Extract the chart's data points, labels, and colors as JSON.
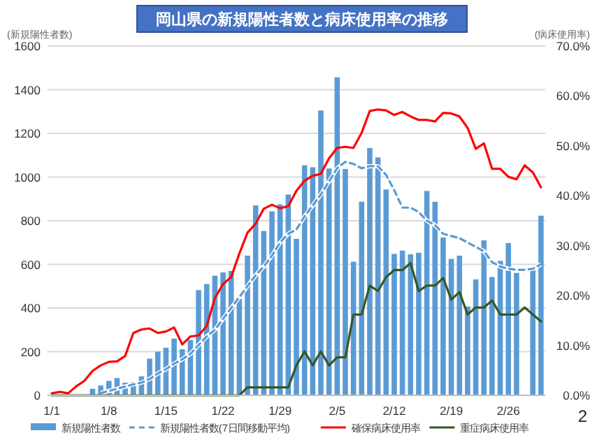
{
  "chart_data": {
    "type": "bar",
    "title": "岡山県の新規陽性者数と病床使用率の推移",
    "ylabel": "(新規陽性者数)",
    "y2label": "(病床使用率)",
    "categories": [
      "1/1",
      null,
      null,
      null,
      null,
      null,
      null,
      "1/8",
      null,
      null,
      null,
      null,
      null,
      null,
      "1/15",
      null,
      null,
      null,
      null,
      null,
      null,
      "1/22",
      null,
      null,
      null,
      null,
      null,
      null,
      "1/29",
      null,
      null,
      null,
      null,
      null,
      null,
      "2/5",
      null,
      null,
      null,
      null,
      null,
      null,
      "2/12",
      null,
      null,
      null,
      null,
      null,
      null,
      "2/19",
      null,
      null,
      null,
      null,
      null,
      null,
      "2/26",
      null,
      null,
      null,
      null
    ],
    "series": [
      {
        "name": "新規陽性者数",
        "color": "#5b9bd5",
        "values": [
          0,
          0,
          0,
          null,
          null,
          30,
          45,
          66,
          79,
          58,
          60,
          87,
          168,
          200,
          218,
          260,
          211,
          254,
          482,
          510,
          548,
          563,
          570,
          442,
          640,
          870,
          753,
          843,
          875,
          920,
          717,
          1054,
          1045,
          1305,
          1039,
          1457,
          1037,
          612,
          887,
          1133,
          1090,
          943,
          648,
          663,
          646,
          653,
          936,
          887,
          723,
          625,
          640,
          407,
          531,
          710,
          542,
          616,
          698,
          561,
          null,
          574,
          823
        ]
      },
      {
        "name": "新規陽性者数(7日間移動平均)",
        "type": "line",
        "line_style": "dashed",
        "color": "#5b9bd5",
        "values": [
          null,
          null,
          null,
          null,
          null,
          null,
          10,
          20,
          30,
          40,
          50,
          58,
          75,
          100,
          120,
          145,
          165,
          190,
          230,
          270,
          300,
          350,
          400,
          450,
          500,
          550,
          590,
          640,
          700,
          740,
          760,
          820,
          870,
          920,
          980,
          1040,
          1070,
          1060,
          1040,
          1050,
          1050,
          1010,
          940,
          860,
          860,
          840,
          800,
          780,
          740,
          730,
          720,
          700,
          680,
          660,
          610,
          590,
          580,
          575,
          575,
          580,
          600
        ]
      },
      {
        "name": "確保病床使用率",
        "type": "line",
        "axis": "y2",
        "color": "#ff0000",
        "values": [
          0.4,
          0.7,
          0.4,
          1.8,
          2.9,
          4.9,
          6.0,
          6.7,
          6.8,
          7.9,
          12.5,
          13.2,
          13.4,
          12.5,
          12.8,
          13.6,
          10.2,
          11.8,
          12.0,
          13.9,
          19.5,
          22.3,
          23.7,
          28.4,
          32.6,
          34.4,
          37.4,
          38.2,
          37.5,
          37.9,
          41.0,
          43.0,
          44.0,
          44.4,
          47.5,
          49.6,
          49.8,
          49.6,
          52.6,
          57.0,
          57.3,
          57.1,
          56.2,
          56.8,
          55.9,
          55.2,
          55.2,
          54.9,
          56.6,
          56.5,
          55.9,
          53.6,
          49.4,
          50.5,
          45.4,
          45.4,
          43.8,
          43.3,
          46.1,
          44.7,
          41.7
        ]
      },
      {
        "name": "重症病床使用率",
        "type": "line",
        "axis": "y2",
        "color": "#375623",
        "values": [
          0,
          0,
          0,
          0,
          0,
          0,
          0,
          0,
          0,
          0,
          0,
          0,
          0,
          0,
          0,
          0,
          0,
          0,
          0,
          0,
          0,
          0,
          0,
          0,
          1.6,
          1.6,
          1.6,
          1.6,
          1.6,
          1.6,
          6.0,
          8.8,
          6.0,
          8.8,
          6.0,
          7.6,
          7.6,
          16.2,
          16.2,
          22.0,
          20.9,
          23.7,
          25.1,
          25.1,
          26.5,
          20.9,
          22.0,
          22.0,
          23.5,
          19.2,
          20.7,
          16.2,
          17.6,
          17.6,
          19.0,
          16.2,
          16.2,
          16.2,
          17.6,
          16.2,
          14.8
        ]
      }
    ],
    "ylim": [
      0,
      1600
    ],
    "yticks": [
      0,
      200,
      400,
      600,
      800,
      1000,
      1200,
      1400,
      1600
    ],
    "y2lim": [
      0,
      70
    ],
    "y2ticks": [
      {
        "value": 0,
        "label": "0.0%"
      },
      {
        "value": 10,
        "label": "10.0%"
      },
      {
        "value": 20,
        "label": "20.0%"
      },
      {
        "value": 30,
        "label": "30.0%"
      },
      {
        "value": 40,
        "label": "40.0%"
      },
      {
        "value": 50,
        "label": "50.0%"
      },
      {
        "value": 60,
        "label": "60.0%"
      },
      {
        "value": 70,
        "label": "70.0%"
      }
    ],
    "grid": "y",
    "legend": "bottom",
    "annotations": [
      "2"
    ]
  }
}
